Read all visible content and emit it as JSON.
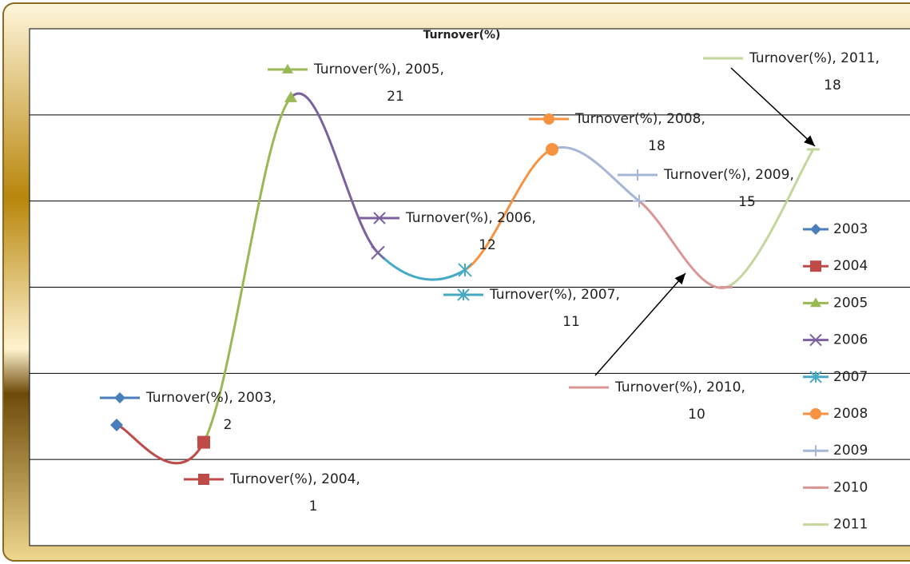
{
  "chart_data": {
    "type": "line",
    "title": "Turnover(%)",
    "categories": [
      "2003",
      "2004",
      "2005",
      "2006",
      "2007",
      "2008",
      "2009",
      "2010",
      "2011"
    ],
    "values": [
      2,
      1,
      21,
      12,
      11,
      18,
      15,
      10,
      18
    ],
    "value_labels": [
      "Turnover(%), 2003, 2",
      "Turnover(%), 2004, 1",
      "Turnover(%), 2005, 21",
      "Turnover(%), 2006, 12",
      "Turnover(%), 2007, 11",
      "Turnover(%), 2008, 18",
      "Turnover(%), 2009, 15",
      "Turnover(%), 2010, 10",
      "Turnover(%), 2011, 18"
    ],
    "colors": [
      "#4a7ebb",
      "#be4b48",
      "#98b954",
      "#7d60a0",
      "#46aac5",
      "#f69240",
      "#a5b6d6",
      "#d99694",
      "#c3d69b"
    ],
    "markers": [
      "diamond",
      "square",
      "triangle",
      "x",
      "star",
      "circle",
      "plus",
      "dash",
      "dash"
    ],
    "smooth": true,
    "ylim": [
      -5,
      25
    ],
    "yticks": [
      -5,
      0,
      5,
      10,
      15,
      20,
      25
    ],
    "grid": true,
    "legend": "right"
  }
}
